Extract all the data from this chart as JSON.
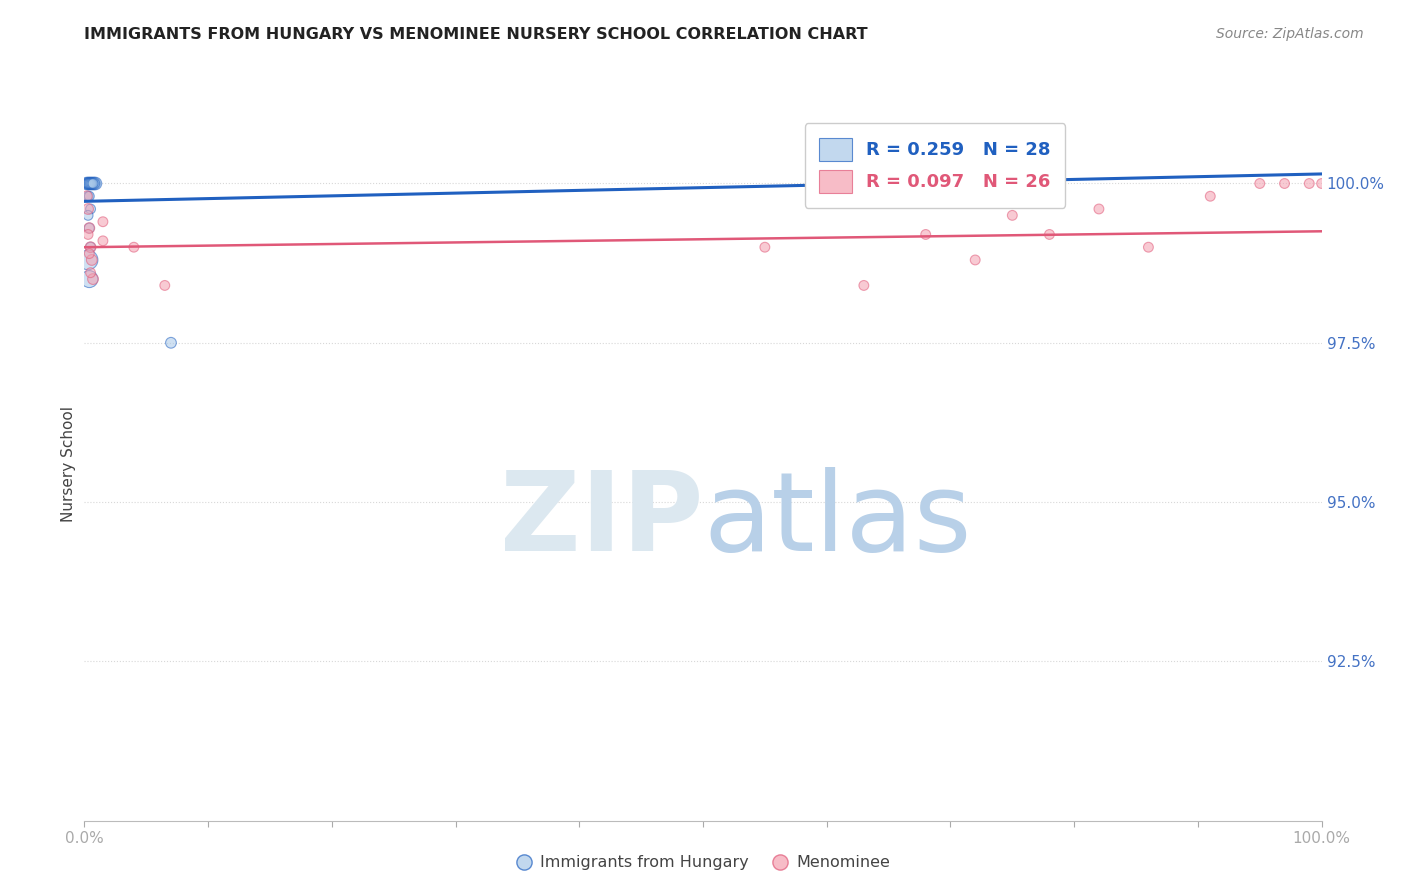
{
  "title": "IMMIGRANTS FROM HUNGARY VS MENOMINEE NURSERY SCHOOL CORRELATION CHART",
  "source": "Source: ZipAtlas.com",
  "ylabel": "Nursery School",
  "legend_blue_r": "R = 0.259",
  "legend_blue_n": "N = 28",
  "legend_pink_r": "R = 0.097",
  "legend_pink_n": "N = 26",
  "legend_label_blue": "Immigrants from Hungary",
  "legend_label_pink": "Menominee",
  "blue_color": "#a8c8e8",
  "pink_color": "#f4a0b0",
  "trendline_blue_color": "#2060c0",
  "trendline_pink_color": "#e05878",
  "watermark_zip_color": "#dce8f0",
  "watermark_atlas_color": "#b8d0e8",
  "background_color": "#ffffff",
  "title_color": "#222222",
  "source_color": "#888888",
  "ylabel_color": "#444444",
  "ytick_color": "#4472c4",
  "xtick_color": "#4472c4",
  "grid_color": "#d8d8d8",
  "blue_scatter_x": [
    0.002,
    0.003,
    0.004,
    0.005,
    0.006,
    0.007,
    0.008,
    0.009,
    0.003,
    0.004,
    0.005,
    0.006,
    0.007,
    0.008,
    0.003,
    0.004,
    0.005,
    0.006,
    0.007,
    0.003,
    0.004,
    0.005,
    0.003,
    0.004,
    0.005,
    0.003,
    0.004,
    0.07
  ],
  "blue_scatter_y": [
    100.0,
    100.0,
    100.0,
    100.0,
    100.0,
    100.0,
    100.0,
    100.0,
    100.0,
    100.0,
    100.0,
    100.0,
    100.0,
    100.0,
    100.0,
    100.0,
    100.0,
    100.0,
    100.0,
    99.8,
    99.8,
    99.6,
    99.5,
    99.3,
    99.0,
    98.8,
    98.5,
    97.5
  ],
  "blue_scatter_sizes": [
    80,
    80,
    80,
    80,
    80,
    80,
    80,
    80,
    60,
    60,
    60,
    60,
    60,
    60,
    50,
    50,
    50,
    50,
    50,
    50,
    50,
    50,
    50,
    50,
    50,
    200,
    150,
    60
  ],
  "pink_scatter_x": [
    0.002,
    0.003,
    0.004,
    0.005,
    0.006,
    0.007,
    0.003,
    0.004,
    0.005,
    0.015,
    0.015,
    0.04,
    0.065,
    0.55,
    0.63,
    0.68,
    0.72,
    0.75,
    0.78,
    0.82,
    0.86,
    0.91,
    0.95,
    0.97,
    0.99,
    1.0
  ],
  "pink_scatter_y": [
    99.8,
    99.6,
    99.3,
    99.0,
    98.8,
    98.5,
    99.2,
    98.9,
    98.6,
    99.4,
    99.1,
    99.0,
    98.4,
    99.0,
    98.4,
    99.2,
    98.8,
    99.5,
    99.2,
    99.6,
    99.0,
    99.8,
    100.0,
    100.0,
    100.0,
    100.0
  ],
  "pink_scatter_sizes": [
    60,
    60,
    60,
    60,
    60,
    60,
    50,
    50,
    50,
    50,
    50,
    50,
    50,
    50,
    50,
    50,
    50,
    50,
    50,
    50,
    50,
    50,
    50,
    50,
    50,
    50
  ],
  "blue_trend_x": [
    0.0,
    1.0
  ],
  "blue_trend_y": [
    99.72,
    100.15
  ],
  "pink_trend_x": [
    0.0,
    1.0
  ],
  "pink_trend_y": [
    99.0,
    99.25
  ],
  "xlim": [
    0.0,
    1.0
  ],
  "ylim": [
    90.0,
    101.2
  ],
  "yticks": [
    92.5,
    95.0,
    97.5,
    100.0
  ],
  "ytick_labels": [
    "92.5%",
    "95.0%",
    "97.5%",
    "100.0%"
  ]
}
